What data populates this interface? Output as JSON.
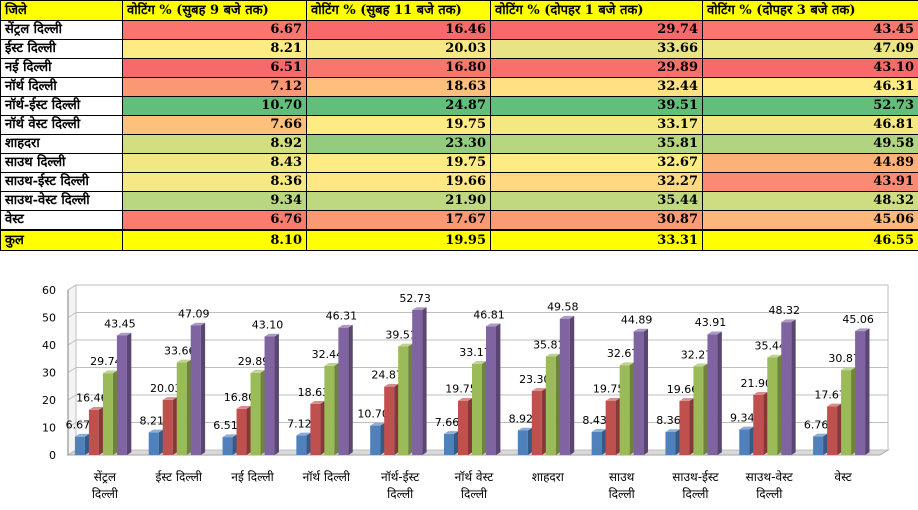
{
  "table": {
    "headers": [
      "जिले",
      "वोटिंग % (सुबह 9 बजे तक)",
      "वोटिंग % (सुबह 11 बजे तक)",
      "वोटिंग % (दोपहर 1 बजे तक)",
      "वोटिंग % (दोपहर 3 बजे तक)"
    ],
    "rows": [
      {
        "district": "सेंट्रल दिल्ली",
        "values": [
          "6.67",
          "16.46",
          "29.74",
          "43.45"
        ]
      },
      {
        "district": "ईस्ट दिल्ली",
        "values": [
          "8.21",
          "20.03",
          "33.66",
          "47.09"
        ]
      },
      {
        "district": "नई दिल्ली",
        "values": [
          "6.51",
          "16.80",
          "29.89",
          "43.10"
        ]
      },
      {
        "district": "नॉर्थ दिल्ली",
        "values": [
          "7.12",
          "18.63",
          "32.44",
          "46.31"
        ]
      },
      {
        "district": "नॉर्थ-ईस्ट दिल्ली",
        "values": [
          "10.70",
          "24.87",
          "39.51",
          "52.73"
        ]
      },
      {
        "district": "नॉर्थ वेस्ट दिल्ली",
        "values": [
          "7.66",
          "19.75",
          "33.17",
          "46.81"
        ]
      },
      {
        "district": "शाहदरा",
        "values": [
          "8.92",
          "23.30",
          "35.81",
          "49.58"
        ]
      },
      {
        "district": "साउथ दिल्ली",
        "values": [
          "8.43",
          "19.75",
          "32.67",
          "44.89"
        ]
      },
      {
        "district": "साउथ-ईस्ट दिल्ली",
        "values": [
          "8.36",
          "19.66",
          "32.27",
          "43.91"
        ]
      },
      {
        "district": "साउथ-वेस्ट दिल्ली",
        "values": [
          "9.34",
          "21.90",
          "35.44",
          "48.32"
        ]
      },
      {
        "district": "वेस्ट",
        "values": [
          "6.76",
          "17.67",
          "30.87",
          "45.06"
        ]
      }
    ],
    "total": {
      "label": "कुल",
      "values": [
        "8.10",
        "19.95",
        "33.31",
        "46.55"
      ]
    }
  },
  "colors": {
    "header_bg": "#ffff00",
    "scale_low": "#f8696b",
    "scale_mid": "#ffeb84",
    "scale_high": "#63be7b",
    "series": [
      "#4f81bd",
      "#c0504d",
      "#9bbb59",
      "#8064a2"
    ]
  },
  "chart_data": {
    "type": "bar",
    "categories": [
      [
        "सेंट्रल",
        "दिल्ली"
      ],
      [
        "ईस्ट दिल्ली"
      ],
      [
        "नई दिल्ली"
      ],
      [
        "नॉर्थ दिल्ली"
      ],
      [
        "नॉर्थ-ईस्ट",
        "दिल्ली"
      ],
      [
        "नॉर्थ वेस्ट",
        "दिल्ली"
      ],
      [
        "शाहदरा"
      ],
      [
        "साउथ",
        "दिल्ली"
      ],
      [
        "साउथ-ईस्ट",
        "दिल्ली"
      ],
      [
        "साउथ-वेस्ट",
        "दिल्ली"
      ],
      [
        "वेस्ट"
      ]
    ],
    "series": [
      {
        "values": [
          6.67,
          8.21,
          6.51,
          7.12,
          10.7,
          7.66,
          8.92,
          8.43,
          8.36,
          9.34,
          6.76
        ]
      },
      {
        "values": [
          16.46,
          20.03,
          16.8,
          18.63,
          24.87,
          19.75,
          23.3,
          19.75,
          19.66,
          21.9,
          17.67
        ]
      },
      {
        "values": [
          29.74,
          33.66,
          29.89,
          32.44,
          39.51,
          33.17,
          35.81,
          32.67,
          32.27,
          35.44,
          30.87
        ]
      },
      {
        "values": [
          43.45,
          47.09,
          43.1,
          46.31,
          52.73,
          46.81,
          49.58,
          44.89,
          43.91,
          48.32,
          45.06
        ]
      }
    ],
    "ylim": [
      0,
      60
    ],
    "yticks": [
      0,
      10,
      20,
      30,
      40,
      50,
      60
    ],
    "grid": true,
    "legend": "none",
    "style": "3d-clustered-column"
  }
}
